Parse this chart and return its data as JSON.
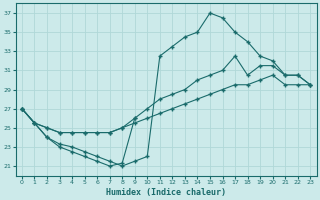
{
  "title": "",
  "xlabel": "Humidex (Indice chaleur)",
  "ylabel": "",
  "background_color": "#cceaea",
  "grid_color": "#b0d8d8",
  "line_color": "#1a6b6b",
  "ylim": [
    20,
    38
  ],
  "xlim": [
    -0.5,
    23.5
  ],
  "yticks": [
    21,
    23,
    25,
    27,
    29,
    31,
    33,
    35,
    37
  ],
  "xticks": [
    0,
    1,
    2,
    3,
    4,
    5,
    6,
    7,
    8,
    9,
    10,
    11,
    12,
    13,
    14,
    15,
    16,
    17,
    18,
    19,
    20,
    21,
    22,
    23
  ],
  "series_main_x": [
    0,
    1,
    2,
    3,
    4,
    5,
    6,
    7,
    8,
    9,
    10,
    11,
    12,
    13,
    14,
    15,
    16,
    17,
    18,
    19,
    20,
    21,
    22,
    23
  ],
  "series_main_y": [
    27.0,
    25.5,
    24.0,
    23.3,
    23.0,
    22.5,
    22.0,
    21.5,
    21.0,
    21.5,
    22.0,
    32.5,
    33.5,
    34.5,
    35.0,
    37.0,
    36.5,
    35.0,
    34.0,
    32.5,
    32.0,
    30.5,
    30.5,
    29.5
  ],
  "series_dip_x": [
    0,
    1,
    2,
    3,
    4,
    5,
    6,
    7,
    8,
    9
  ],
  "series_dip_y": [
    27.0,
    25.5,
    24.0,
    23.0,
    22.5,
    22.0,
    21.5,
    21.0,
    21.3,
    26.0
  ],
  "series_mid_x": [
    0,
    1,
    2,
    3,
    4,
    5,
    6,
    7,
    8,
    9,
    10,
    11,
    12,
    13,
    14,
    15,
    16,
    17,
    18,
    19,
    20,
    21,
    22,
    23
  ],
  "series_mid_y": [
    27.0,
    25.5,
    25.0,
    24.5,
    24.5,
    24.5,
    24.5,
    24.5,
    25.0,
    26.0,
    27.0,
    28.0,
    28.5,
    29.0,
    30.0,
    30.5,
    31.0,
    32.5,
    30.5,
    31.5,
    31.5,
    30.5,
    30.5,
    29.5
  ],
  "series_low_x": [
    0,
    1,
    2,
    3,
    4,
    5,
    6,
    7,
    8,
    9,
    10,
    11,
    12,
    13,
    14,
    15,
    16,
    17,
    18,
    19,
    20,
    21,
    22,
    23
  ],
  "series_low_y": [
    27.0,
    25.5,
    25.0,
    24.5,
    24.5,
    24.5,
    24.5,
    24.5,
    25.0,
    25.5,
    26.0,
    26.5,
    27.0,
    27.5,
    28.0,
    28.5,
    29.0,
    29.5,
    29.5,
    30.0,
    30.5,
    29.5,
    29.5,
    29.5
  ]
}
